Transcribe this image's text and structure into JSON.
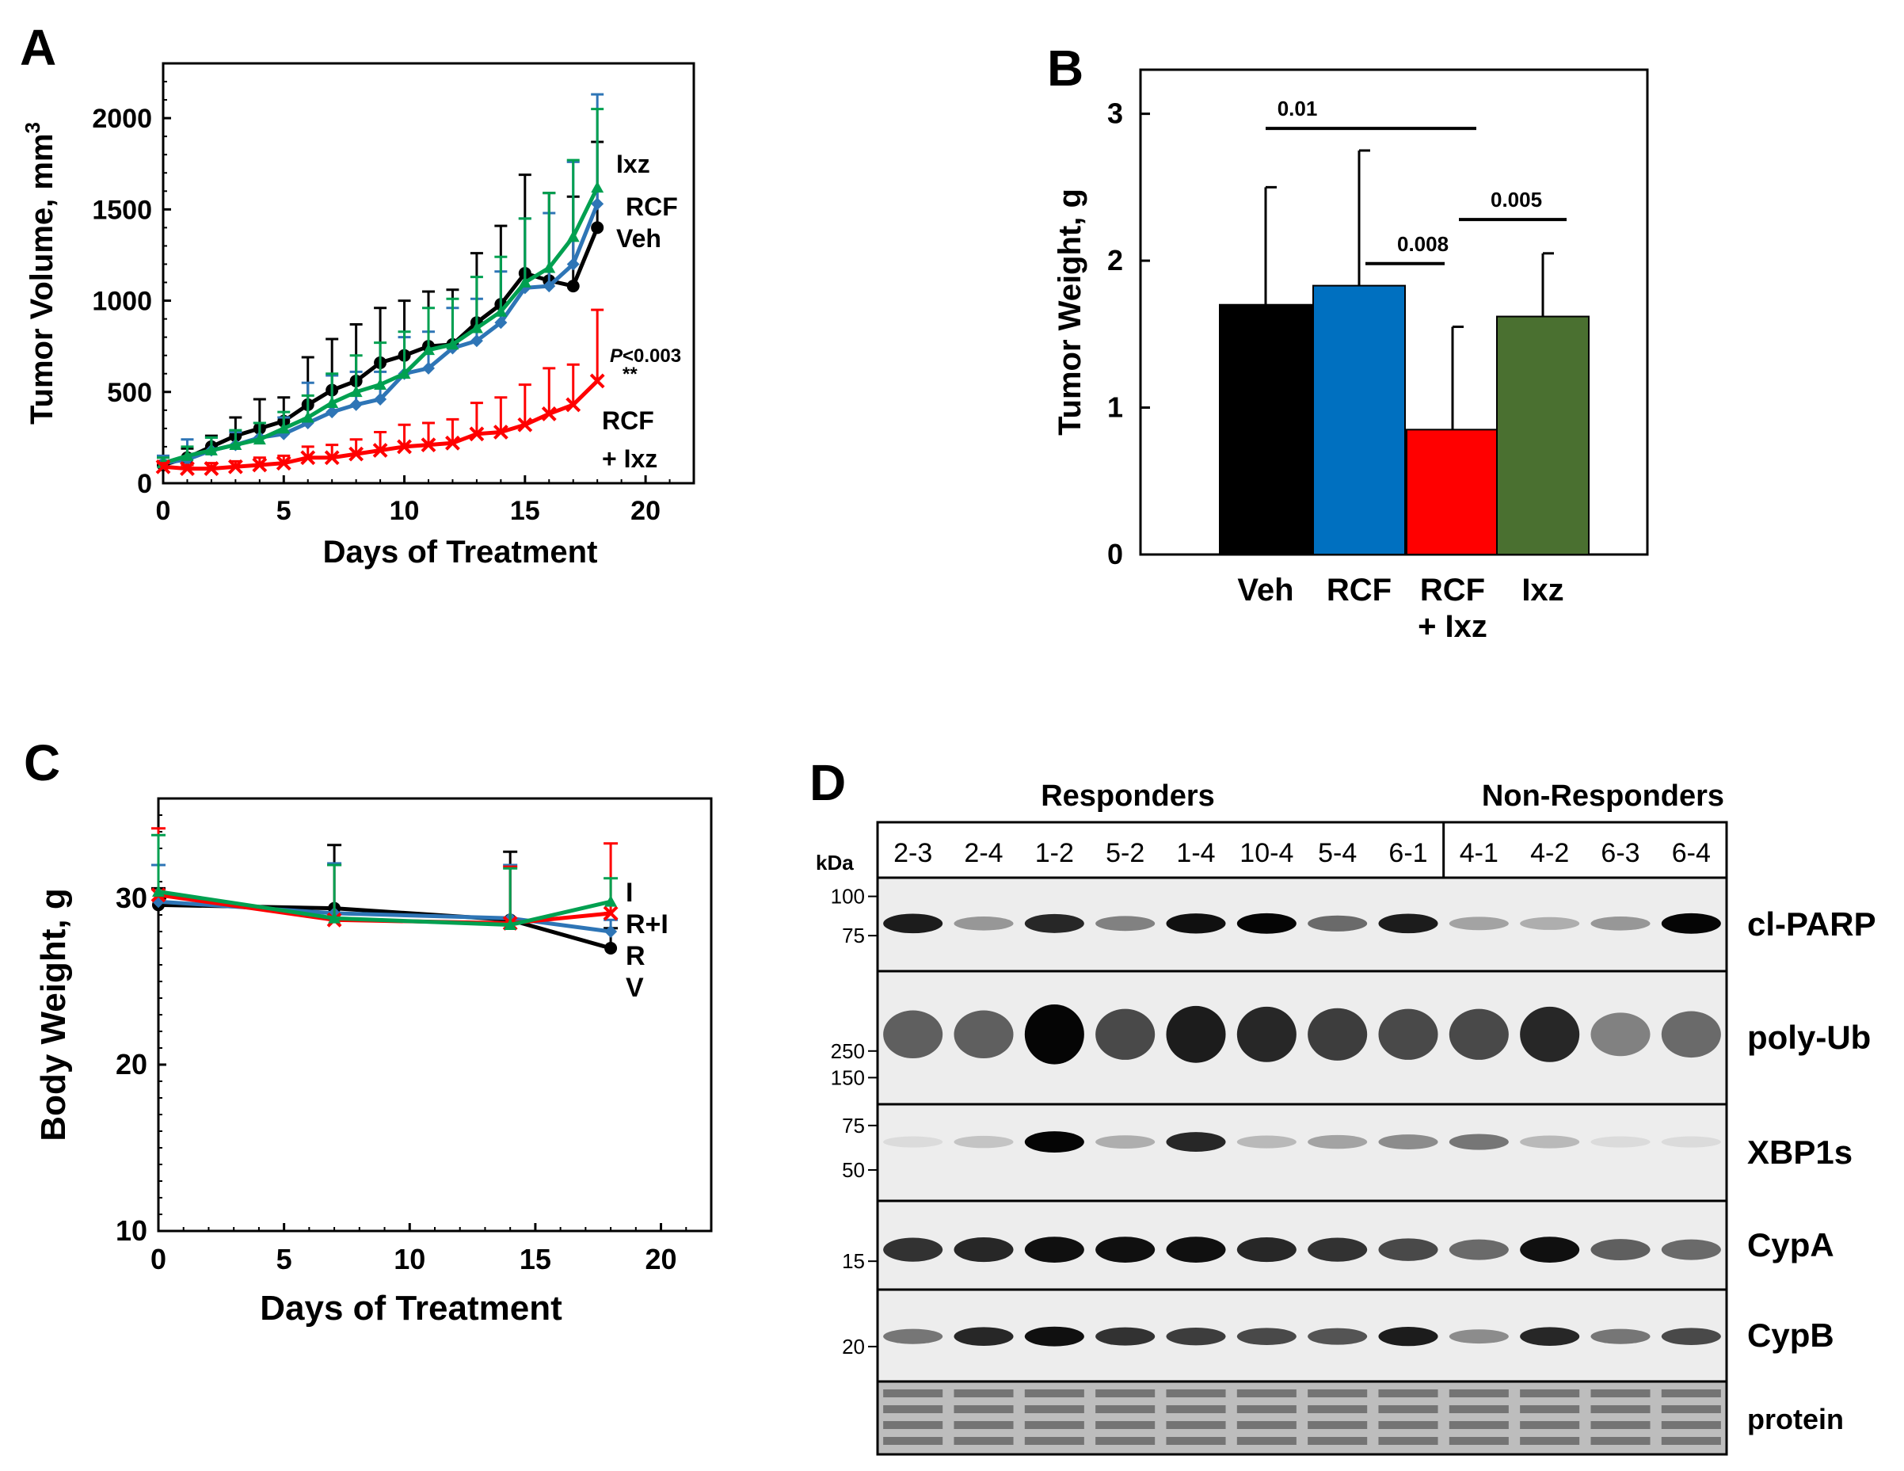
{
  "panels": {
    "A": {
      "label": "A"
    },
    "B": {
      "label": "B"
    },
    "C": {
      "label": "C"
    },
    "D": {
      "label": "D"
    }
  },
  "colors": {
    "veh": "#000000",
    "rcf": "#2E75B6",
    "combo": "#FF0000",
    "ixz": "#00A050",
    "ixz_bar": "#4A7030",
    "rcf_bar": "#0070C0"
  },
  "chart_data": [
    {
      "id": "A",
      "type": "line",
      "xlabel": "Days of Treatment",
      "ylabel": "Tumor Volume, mm",
      "ylabel_sup": "3",
      "xlim": [
        0,
        22
      ],
      "ylim": [
        0,
        2300
      ],
      "xticks": [
        0,
        5,
        10,
        15,
        20
      ],
      "yticks": [
        0,
        500,
        1000,
        1500,
        2000
      ],
      "series": [
        {
          "name": "Veh",
          "color": "#000000",
          "marker": "circle",
          "x": [
            0,
            1,
            2,
            3,
            4,
            5,
            6,
            7,
            8,
            9,
            10,
            11,
            12,
            13,
            14,
            15,
            16,
            17,
            18
          ],
          "y": [
            100,
            140,
            200,
            260,
            300,
            340,
            430,
            510,
            560,
            660,
            700,
            750,
            760,
            880,
            980,
            1150,
            1110,
            1080,
            1400
          ],
          "err": [
            50,
            50,
            60,
            100,
            160,
            130,
            260,
            280,
            310,
            300,
            300,
            300,
            300,
            380,
            430,
            540,
            480,
            490,
            470
          ]
        },
        {
          "name": "RCF",
          "color": "#2E75B6",
          "marker": "diamond",
          "x": [
            0,
            1,
            2,
            3,
            4,
            5,
            6,
            7,
            8,
            9,
            10,
            11,
            12,
            13,
            14,
            15,
            16,
            17,
            18
          ],
          "y": [
            110,
            130,
            180,
            210,
            250,
            270,
            330,
            390,
            430,
            460,
            600,
            630,
            740,
            780,
            880,
            1070,
            1080,
            1200,
            1530
          ],
          "err": [
            40,
            110,
            70,
            70,
            80,
            90,
            220,
            200,
            180,
            150,
            200,
            200,
            220,
            230,
            280,
            380,
            400,
            560,
            600
          ]
        },
        {
          "name": "Ixz",
          "color": "#00A050",
          "marker": "triangle",
          "x": [
            0,
            1,
            2,
            3,
            4,
            5,
            6,
            7,
            8,
            9,
            10,
            11,
            12,
            13,
            14,
            15,
            16,
            17,
            18
          ],
          "y": [
            110,
            150,
            180,
            210,
            240,
            300,
            360,
            440,
            500,
            540,
            600,
            730,
            760,
            850,
            940,
            1100,
            1180,
            1350,
            1620
          ],
          "err": [
            30,
            50,
            70,
            80,
            90,
            90,
            120,
            160,
            200,
            230,
            230,
            230,
            250,
            280,
            300,
            350,
            410,
            420,
            430
          ]
        },
        {
          "name": "RCF + Ixz",
          "color": "#FF0000",
          "marker": "x",
          "x": [
            0,
            1,
            2,
            3,
            4,
            5,
            6,
            7,
            8,
            9,
            10,
            11,
            12,
            13,
            14,
            15,
            16,
            17,
            18
          ],
          "y": [
            90,
            80,
            80,
            90,
            100,
            110,
            140,
            140,
            160,
            180,
            200,
            210,
            220,
            270,
            280,
            320,
            380,
            430,
            560
          ],
          "err": [
            20,
            20,
            30,
            30,
            40,
            40,
            60,
            70,
            80,
            100,
            120,
            120,
            130,
            170,
            190,
            220,
            250,
            220,
            390
          ]
        }
      ],
      "labels": {
        "ixz": "Ixz",
        "rcf": "RCF",
        "veh": "Veh",
        "combo_line1": "RCF",
        "combo_line2": "+ Ixz"
      },
      "pvalue_prefix": "P",
      "pvalue_rest": "<0.003",
      "stars": "**"
    },
    {
      "id": "B",
      "type": "bar",
      "categories": [
        "Veh",
        "RCF",
        "RCF + Ixz",
        "Ixz"
      ],
      "category_lines": [
        [
          "Veh"
        ],
        [
          "RCF"
        ],
        [
          "RCF",
          "+ Ixz"
        ],
        [
          "Ixz"
        ]
      ],
      "values": [
        1.7,
        1.83,
        0.85,
        1.62
      ],
      "errors": [
        0.8,
        0.92,
        0.7,
        0.43
      ],
      "bar_colors": [
        "#000000",
        "#0070C0",
        "#FF0000",
        "#4A7030"
      ],
      "ylabel": "Tumor Weight, g",
      "ylim": [
        0,
        3.3
      ],
      "yticks": [
        0,
        1,
        2,
        3
      ],
      "comparisons": [
        {
          "from": 0,
          "to": 2,
          "label": "0.01",
          "y": 2.9
        },
        {
          "from": 1,
          "to": 2,
          "label": "0.008",
          "y": 1.98
        },
        {
          "from": 2,
          "to": 3,
          "label": "0.005",
          "y": 2.28
        }
      ]
    },
    {
      "id": "C",
      "type": "line",
      "xlabel": "Days of Treatment",
      "ylabel": "Body Weight, g",
      "xlim": [
        0,
        22
      ],
      "ylim": [
        10,
        36
      ],
      "xticks": [
        0,
        5,
        10,
        15,
        20
      ],
      "yticks": [
        10,
        20,
        30
      ],
      "series": [
        {
          "name": "V",
          "color": "#000000",
          "marker": "circle",
          "x": [
            0,
            7,
            14,
            18
          ],
          "y": [
            29.6,
            29.4,
            28.7,
            27.0
          ],
          "err": [
            1.0,
            3.8,
            4.1,
            1.2
          ]
        },
        {
          "name": "R",
          "color": "#2E75B6",
          "marker": "diamond",
          "x": [
            0,
            7,
            14,
            18
          ],
          "y": [
            29.8,
            29.1,
            28.8,
            28.0
          ],
          "err": [
            2.2,
            3.0,
            3.2,
            0.7
          ]
        },
        {
          "name": "R+I",
          "color": "#FF0000",
          "marker": "x",
          "x": [
            0,
            7,
            14,
            18
          ],
          "y": [
            30.2,
            28.7,
            28.5,
            29.1
          ],
          "err": [
            4.0,
            3.3,
            3.4,
            4.2
          ]
        },
        {
          "name": "I",
          "color": "#00A050",
          "marker": "triangle",
          "x": [
            0,
            7,
            14,
            18
          ],
          "y": [
            30.4,
            28.8,
            28.4,
            29.8
          ],
          "err": [
            3.4,
            3.2,
            3.4,
            1.4
          ]
        }
      ],
      "labels": {
        "i": "I",
        "ri": "R+I",
        "r": "R",
        "v": "V"
      }
    }
  ],
  "blot": {
    "group_labels": {
      "responders": "Responders",
      "non_responders": "Non-Responders"
    },
    "kda_label": "kDa",
    "lanes": [
      "2-3",
      "2-4",
      "1-2",
      "5-2",
      "1-4",
      "10-4",
      "5-4",
      "6-1",
      "4-1",
      "4-2",
      "6-3",
      "6-4"
    ],
    "responder_count": 8,
    "rows": [
      {
        "name": "cl-PARP",
        "markers": [
          "100",
          "75"
        ],
        "intensities": [
          0.9,
          0.35,
          0.85,
          0.45,
          0.95,
          1.0,
          0.55,
          0.9,
          0.3,
          0.25,
          0.35,
          1.0
        ]
      },
      {
        "name": "poly-Ub",
        "markers": [
          "250",
          "150"
        ],
        "intensities": [
          0.6,
          0.6,
          1.0,
          0.7,
          0.9,
          0.85,
          0.75,
          0.7,
          0.7,
          0.85,
          0.45,
          0.55
        ]
      },
      {
        "name": "XBP1s",
        "markers": [
          "75",
          "50"
        ],
        "intensities": [
          0.05,
          0.15,
          1.0,
          0.25,
          0.85,
          0.2,
          0.3,
          0.4,
          0.5,
          0.2,
          0.05,
          0.05
        ]
      },
      {
        "name": "CypA",
        "markers": [
          "15"
        ],
        "intensities": [
          0.8,
          0.85,
          0.95,
          0.95,
          0.95,
          0.85,
          0.8,
          0.7,
          0.55,
          0.95,
          0.6,
          0.55
        ]
      },
      {
        "name": "CypB",
        "markers": [
          "20"
        ],
        "intensities": [
          0.5,
          0.85,
          0.95,
          0.8,
          0.75,
          0.7,
          0.65,
          0.9,
          0.4,
          0.85,
          0.5,
          0.7
        ]
      },
      {
        "name": "protein",
        "markers": [],
        "intensities": [
          0.6,
          0.6,
          0.6,
          0.6,
          0.6,
          0.6,
          0.6,
          0.6,
          0.6,
          0.6,
          0.6,
          0.6
        ]
      }
    ]
  }
}
